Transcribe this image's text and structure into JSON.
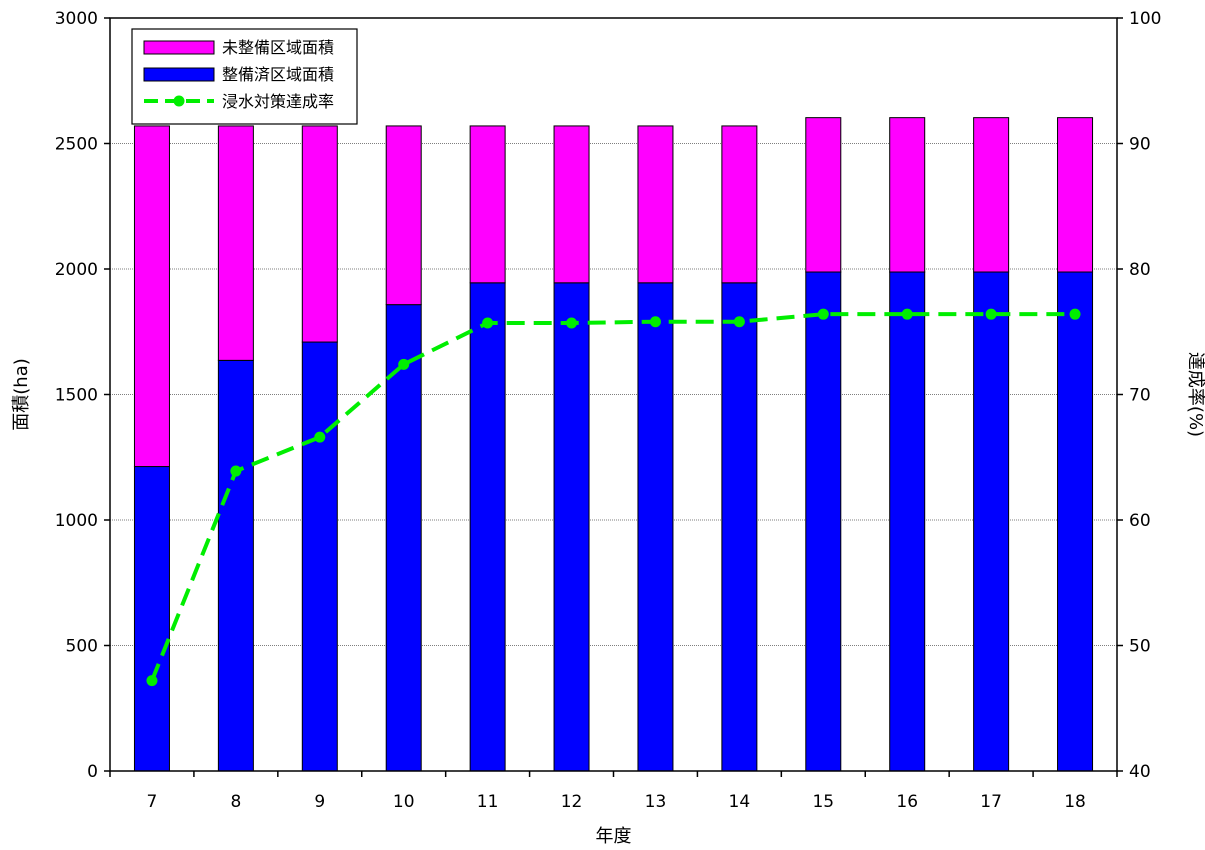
{
  "chart_data": {
    "type": "bar",
    "stacked": true,
    "categories": [
      "7",
      "8",
      "9",
      "10",
      "11",
      "12",
      "13",
      "14",
      "15",
      "16",
      "17",
      "18"
    ],
    "series": [
      {
        "name": "整備済区域面積",
        "kind": "bar",
        "axis": "left",
        "color": "#0000ff",
        "values": [
          1213,
          1636,
          1709,
          1858,
          1945,
          1945,
          1945,
          1945,
          1988,
          1988,
          1988,
          1988
        ]
      },
      {
        "name": "未整備区域面積",
        "kind": "bar",
        "axis": "left",
        "color": "#ff00ff",
        "values": [
          1357,
          934,
          861,
          712,
          625,
          625,
          625,
          625,
          615,
          615,
          615,
          615
        ]
      },
      {
        "name": "浸水対策達成率",
        "kind": "line",
        "axis": "right",
        "color": "#00ee00",
        "dashed": true,
        "marker": "circle",
        "values": [
          47.2,
          63.9,
          66.6,
          72.4,
          75.7,
          75.7,
          75.8,
          75.8,
          76.4,
          76.4,
          76.4,
          76.4
        ]
      }
    ],
    "xlabel": "年度",
    "ylabel": "面積(ha)",
    "y2label": "達成率(%)",
    "ylim": [
      0,
      3000
    ],
    "y2lim": [
      40,
      100
    ],
    "yticks": [
      "0",
      "500",
      "1000",
      "1500",
      "2000",
      "2500",
      "3000"
    ],
    "y2ticks": [
      "40",
      "50",
      "60",
      "70",
      "80",
      "90",
      "100"
    ],
    "grid": true,
    "legend_position": "top-left",
    "legend_order": [
      "未整備区域面積",
      "整備済区域面積",
      "浸水対策達成率"
    ]
  }
}
